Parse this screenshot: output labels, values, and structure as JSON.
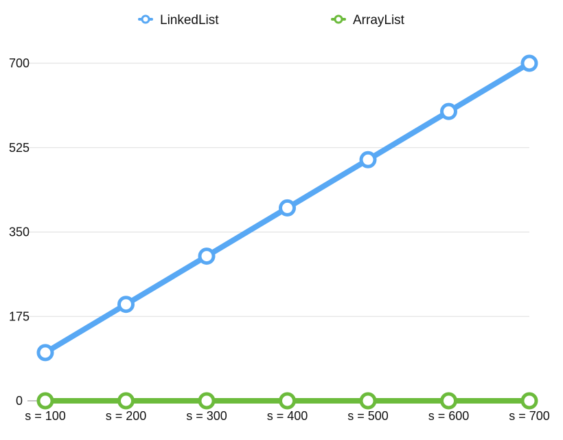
{
  "chart_data": {
    "type": "line",
    "categories": [
      "s = 100",
      "s = 200",
      "s = 300",
      "s = 400",
      "s = 500",
      "s = 600",
      "s = 700"
    ],
    "series": [
      {
        "name": "LinkedList",
        "color": "#58a8f4",
        "values": [
          100,
          200,
          300,
          400,
          500,
          600,
          700
        ]
      },
      {
        "name": "ArrayList",
        "color": "#6cbb3c",
        "values": [
          0,
          0,
          0,
          0,
          0,
          0,
          0
        ]
      }
    ],
    "yticks": [
      "0",
      "175",
      "350",
      "525",
      "700"
    ],
    "ylim": [
      0,
      700
    ],
    "grid": true,
    "legend_position": "top"
  }
}
